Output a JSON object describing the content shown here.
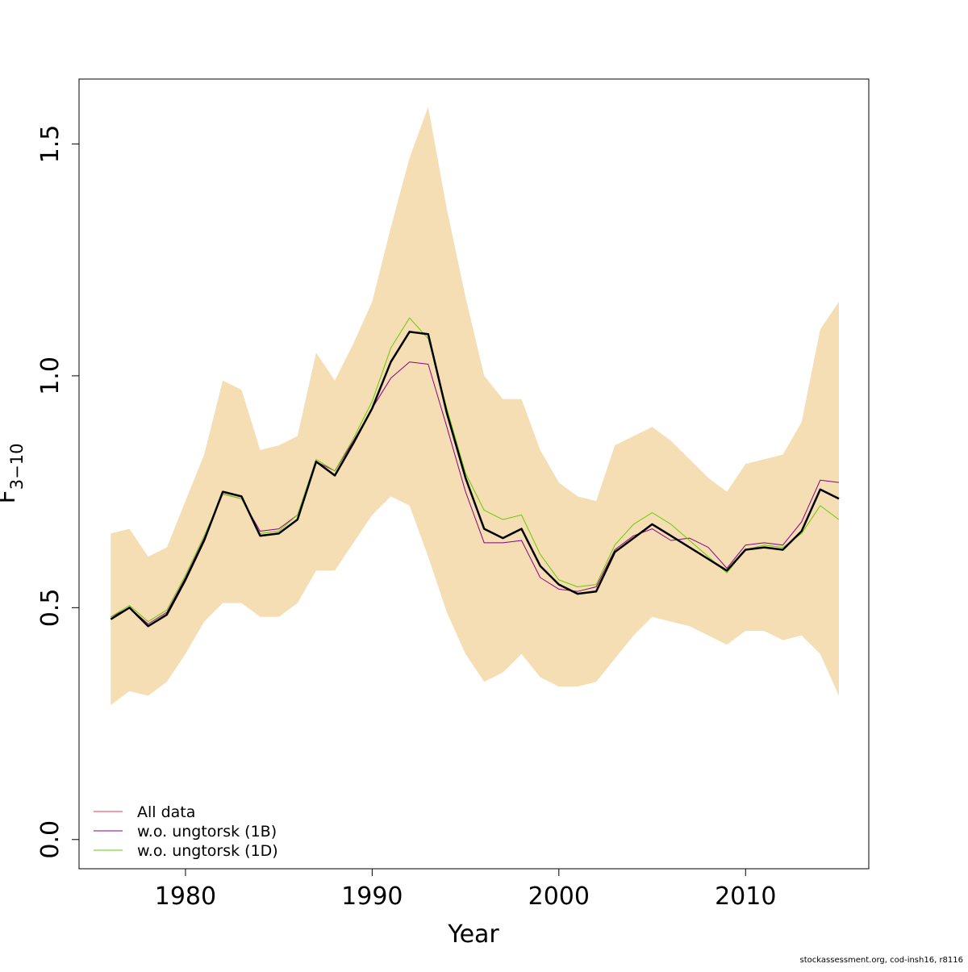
{
  "chart_data": {
    "type": "line",
    "xlabel": "Year",
    "ylabel_main": "F",
    "ylabel_sub": "3−10",
    "xlim": [
      1974.3,
      2016.6
    ],
    "ylim": [
      -0.063,
      1.64
    ],
    "x_ticks": [
      {
        "value": 1980,
        "label": "1980"
      },
      {
        "value": 1990,
        "label": "1990"
      },
      {
        "value": 2000,
        "label": "2000"
      },
      {
        "value": 2010,
        "label": "2010"
      }
    ],
    "y_ticks": [
      {
        "value": 0.0,
        "label": "0.0"
      },
      {
        "value": 0.5,
        "label": "0.5"
      },
      {
        "value": 1.0,
        "label": "1.0"
      },
      {
        "value": 1.5,
        "label": "1.5"
      }
    ],
    "years": [
      1976,
      1977,
      1978,
      1979,
      1980,
      1981,
      1982,
      1983,
      1984,
      1985,
      1986,
      1987,
      1988,
      1989,
      1990,
      1991,
      1992,
      1993,
      1994,
      1995,
      1996,
      1997,
      1998,
      1999,
      2000,
      2001,
      2002,
      2003,
      2004,
      2005,
      2006,
      2007,
      2008,
      2009,
      2010,
      2011,
      2012,
      2013,
      2014,
      2015
    ],
    "band": {
      "color": "#f5deb3",
      "upper": [
        0.66,
        0.67,
        0.61,
        0.63,
        0.73,
        0.83,
        0.99,
        0.97,
        0.84,
        0.85,
        0.87,
        1.05,
        0.99,
        1.07,
        1.16,
        1.32,
        1.47,
        1.58,
        1.36,
        1.17,
        1.0,
        0.95,
        0.95,
        0.84,
        0.77,
        0.74,
        0.73,
        0.85,
        0.87,
        0.89,
        0.86,
        0.82,
        0.78,
        0.75,
        0.81,
        0.82,
        0.83,
        0.9,
        1.1,
        1.16
      ],
      "lower": [
        0.29,
        0.32,
        0.31,
        0.34,
        0.4,
        0.47,
        0.51,
        0.51,
        0.48,
        0.48,
        0.51,
        0.58,
        0.58,
        0.64,
        0.7,
        0.74,
        0.72,
        0.61,
        0.49,
        0.4,
        0.34,
        0.36,
        0.4,
        0.35,
        0.33,
        0.33,
        0.34,
        0.39,
        0.44,
        0.48,
        0.47,
        0.46,
        0.44,
        0.42,
        0.45,
        0.45,
        0.43,
        0.44,
        0.4,
        0.31
      ]
    },
    "series": [
      {
        "name": "All data",
        "color": "#000000",
        "width": 2.5,
        "in_legend": false,
        "values": [
          0.475,
          0.5,
          0.46,
          0.485,
          0.56,
          0.645,
          0.75,
          0.74,
          0.655,
          0.66,
          0.69,
          0.815,
          0.785,
          0.855,
          0.93,
          1.03,
          1.095,
          1.09,
          0.92,
          0.78,
          0.67,
          0.65,
          0.67,
          0.59,
          0.55,
          0.53,
          0.535,
          0.62,
          0.65,
          0.68,
          0.655,
          0.63,
          0.605,
          0.58,
          0.625,
          0.63,
          0.625,
          0.665,
          0.755,
          0.735
        ]
      },
      {
        "name": "w.o. ungtorsk (1B)",
        "color": "#8b008b",
        "width": 1,
        "in_legend": true,
        "values": [
          0.48,
          0.5,
          0.465,
          0.49,
          0.565,
          0.65,
          0.745,
          0.735,
          0.665,
          0.67,
          0.7,
          0.815,
          0.795,
          0.86,
          0.93,
          0.995,
          1.03,
          1.025,
          0.89,
          0.75,
          0.64,
          0.64,
          0.645,
          0.565,
          0.54,
          0.535,
          0.545,
          0.625,
          0.655,
          0.67,
          0.645,
          0.65,
          0.63,
          0.585,
          0.635,
          0.64,
          0.635,
          0.685,
          0.775,
          0.77
        ]
      },
      {
        "name": "w.o. ungtorsk (1D)",
        "color": "#66cc00",
        "width": 1,
        "in_legend": true,
        "values": [
          0.48,
          0.505,
          0.47,
          0.495,
          0.57,
          0.655,
          0.745,
          0.735,
          0.66,
          0.665,
          0.7,
          0.82,
          0.795,
          0.865,
          0.945,
          1.06,
          1.125,
          1.08,
          0.93,
          0.79,
          0.71,
          0.69,
          0.7,
          0.615,
          0.56,
          0.545,
          0.55,
          0.635,
          0.68,
          0.705,
          0.68,
          0.645,
          0.61,
          0.575,
          0.625,
          0.635,
          0.63,
          0.66,
          0.72,
          0.69
        ]
      }
    ],
    "legend": {
      "placement": "bottom-left",
      "entries": [
        {
          "label": "All data",
          "color": "#e8384f"
        },
        {
          "label": "w.o. ungtorsk (1B)",
          "color": "#8b008b"
        },
        {
          "label": "w.o. ungtorsk (1D)",
          "color": "#66cc00"
        }
      ]
    },
    "grid": false
  },
  "footer": {
    "credit": "stockassessment.org, cod-insh16, r8116"
  }
}
